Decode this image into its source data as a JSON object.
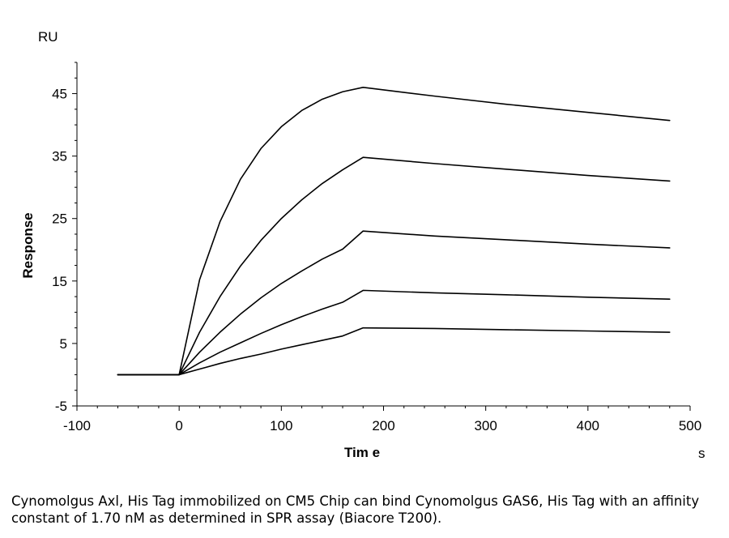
{
  "chart_data": {
    "type": "line",
    "y_unit": "RU",
    "x_unit": "s",
    "ylabel": "Response",
    "xlabel": "Tim e",
    "xlim": [
      -100,
      500
    ],
    "ylim": [
      -5,
      50
    ],
    "x_ticks": [
      -100,
      0,
      100,
      200,
      300,
      400,
      500
    ],
    "y_ticks": [
      -5,
      5,
      15,
      25,
      35,
      45
    ],
    "grid": false,
    "legend": "none",
    "series": [
      {
        "color": "#000000",
        "x": [
          -60,
          -30,
          0,
          20,
          40,
          60,
          80,
          100,
          120,
          140,
          160,
          180,
          250,
          320,
          400,
          480
        ],
        "y": [
          0,
          0,
          0,
          15.2,
          24.5,
          31.3,
          36.2,
          39.7,
          42.3,
          44.1,
          45.3,
          46.0,
          44.6,
          43.3,
          42.0,
          40.7
        ]
      },
      {
        "color": "#000000",
        "x": [
          -60,
          -30,
          0,
          20,
          40,
          60,
          80,
          100,
          120,
          140,
          160,
          180,
          250,
          320,
          400,
          480
        ],
        "y": [
          0,
          0,
          0,
          6.8,
          12.5,
          17.4,
          21.5,
          25.0,
          28.0,
          30.6,
          32.8,
          34.8,
          33.8,
          32.9,
          31.9,
          31.0
        ]
      },
      {
        "color": "#000000",
        "x": [
          -60,
          -30,
          0,
          20,
          40,
          60,
          80,
          100,
          120,
          140,
          160,
          180,
          250,
          320,
          400,
          480
        ],
        "y": [
          0,
          0,
          0,
          3.6,
          6.8,
          9.7,
          12.3,
          14.6,
          16.6,
          18.5,
          20.1,
          23.0,
          22.2,
          21.6,
          20.9,
          20.3
        ]
      },
      {
        "color": "#000000",
        "x": [
          -60,
          -30,
          0,
          20,
          40,
          60,
          80,
          100,
          120,
          140,
          160,
          180,
          250,
          320,
          400,
          480
        ],
        "y": [
          0,
          0,
          0,
          1.9,
          3.6,
          5.1,
          6.6,
          8.0,
          9.3,
          10.5,
          11.6,
          13.5,
          13.1,
          12.8,
          12.4,
          12.1
        ]
      },
      {
        "color": "#000000",
        "x": [
          -60,
          -30,
          0,
          20,
          40,
          60,
          80,
          100,
          120,
          140,
          160,
          180,
          250,
          320,
          400,
          480
        ],
        "y": [
          0,
          0,
          0,
          0.9,
          1.8,
          2.6,
          3.3,
          4.1,
          4.8,
          5.5,
          6.2,
          7.5,
          7.4,
          7.2,
          7.0,
          6.8
        ]
      }
    ]
  },
  "caption": "Cynomolgus Axl, His Tag immobilized on CM5 Chip can bind Cynomolgus GAS6, His Tag with an affinity constant of 1.70 nM as determined in SPR assay (Biacore T200)."
}
